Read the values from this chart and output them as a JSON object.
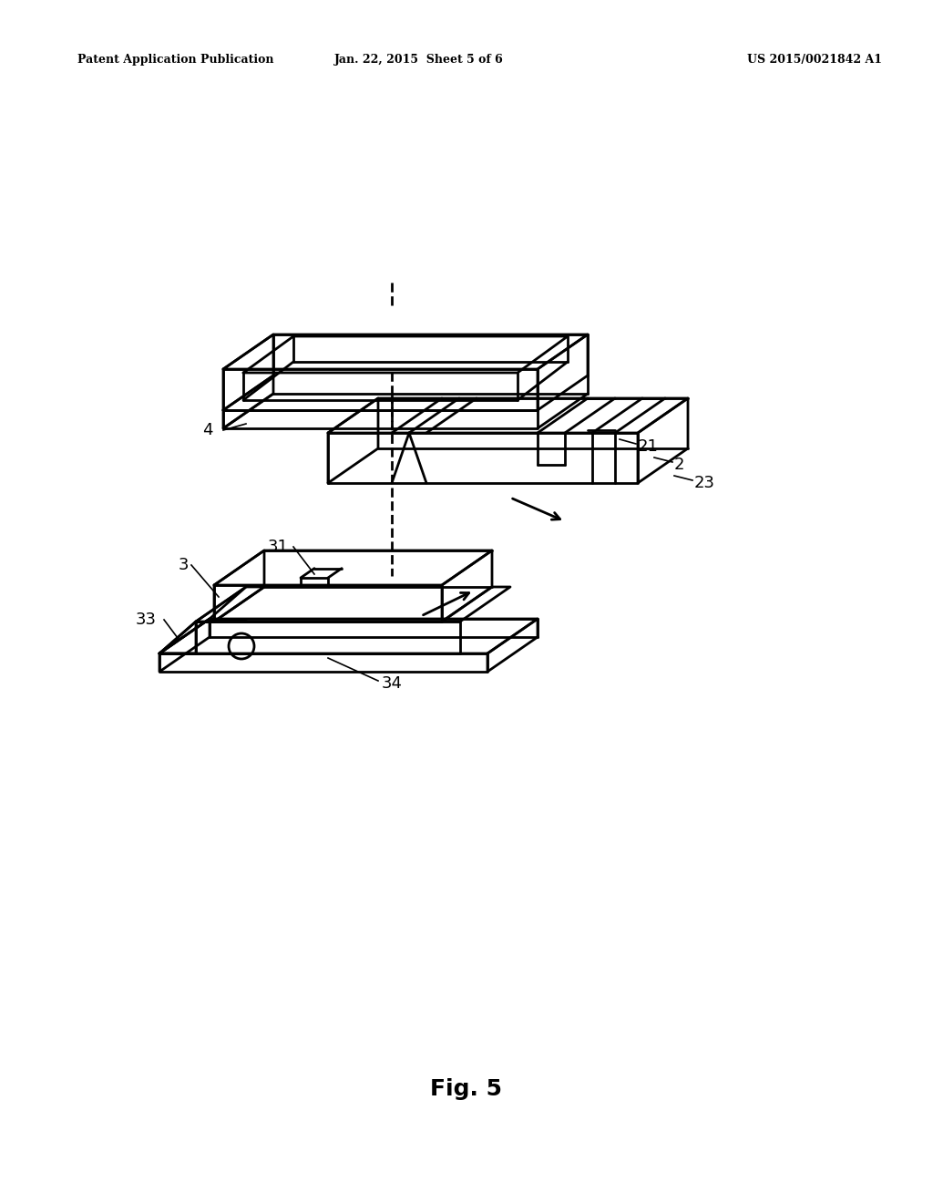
{
  "header_left": "Patent Application Publication",
  "header_mid": "Jan. 22, 2015  Sheet 5 of 6",
  "header_right": "US 2015/0021842 A1",
  "fig_label": "Fig. 5",
  "background_color": "#ffffff",
  "line_color": "#000000"
}
